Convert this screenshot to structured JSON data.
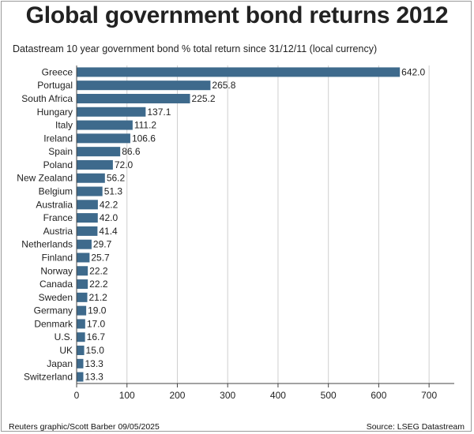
{
  "title": "Global government bond returns 2012",
  "subtitle": "Datastream 10 year government bond % total return since 31/12/11 (local currency)",
  "credit": "Reuters graphic/Scott Barber 09/05/2025",
  "source": "Source: LSEG Datastream",
  "colors": {
    "bar": "#3e6a8c",
    "grid": "#cfcfcf",
    "axis": "#444444",
    "text": "#222222"
  },
  "chart_data": {
    "type": "bar",
    "orientation": "horizontal",
    "categories": [
      "Greece",
      "Portugal",
      "South Africa",
      "Hungary",
      "Italy",
      "Ireland",
      "Spain",
      "Poland",
      "New Zealand",
      "Belgium",
      "Australia",
      "France",
      "Austria",
      "Netherlands",
      "Finland",
      "Norway",
      "Canada",
      "Sweden",
      "Germany",
      "Denmark",
      "U.S.",
      "UK",
      "Japan",
      "Switzerland"
    ],
    "values": [
      642.0,
      265.8,
      225.2,
      137.1,
      111.2,
      106.6,
      86.6,
      72.0,
      56.2,
      51.3,
      42.2,
      42.0,
      41.4,
      29.7,
      25.7,
      22.2,
      22.2,
      21.2,
      19.0,
      17.0,
      16.7,
      15.0,
      13.3,
      13.3
    ],
    "value_labels": [
      "642.0",
      "265.8",
      "225.2",
      "137.1",
      "111.2",
      "106.6",
      "86.6",
      "72.0",
      "56.2",
      "51.3",
      "42.2",
      "42.0",
      "41.4",
      "29.7",
      "25.7",
      "22.2",
      "22.2",
      "21.2",
      "19.0",
      "17.0",
      "16.7",
      "15.0",
      "13.3",
      "13.3"
    ],
    "xlim": [
      0,
      750
    ],
    "xticks": [
      0,
      100,
      200,
      300,
      400,
      500,
      600,
      700
    ],
    "xtick_labels": [
      "0",
      "100",
      "200",
      "300",
      "400",
      "500",
      "600",
      "700"
    ],
    "grid": true,
    "xlabel": "",
    "ylabel": ""
  }
}
